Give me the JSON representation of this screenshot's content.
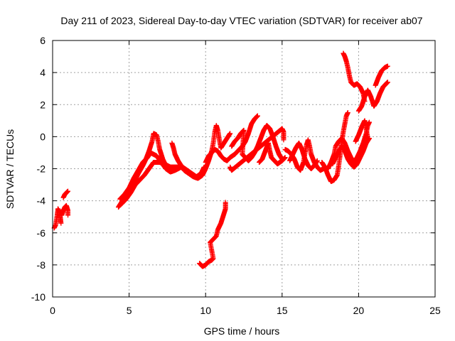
{
  "chart_data": {
    "type": "scatter",
    "title": "Day 211 of 2023, Sidereal Day-to-day VTEC variation (SDTVAR) for receiver ab07",
    "xlabel": "GPS time / hours",
    "ylabel": "SDTVAR / TECUs",
    "xlim": [
      0,
      25
    ],
    "ylim": [
      -10,
      6
    ],
    "xticks": [
      "0",
      "5",
      "10",
      "15",
      "20",
      "25"
    ],
    "yticks": [
      "-10",
      "-8",
      "-6",
      "-4",
      "-2",
      "0",
      "2",
      "4",
      "6"
    ],
    "grid": true,
    "marker": "plus",
    "color": "#ff0000",
    "series": [
      {
        "segments": [
          [
            [
              0.1,
              -5.7
            ],
            [
              0.2,
              -5.5
            ],
            [
              0.3,
              -4.9
            ],
            [
              0.35,
              -4.5
            ],
            [
              0.45,
              -4.7
            ],
            [
              0.5,
              -5.0
            ],
            [
              0.55,
              -5.4
            ]
          ],
          [
            [
              0.6,
              -4.9
            ],
            [
              0.7,
              -4.6
            ],
            [
              0.8,
              -4.4
            ],
            [
              0.9,
              -4.3
            ],
            [
              1.0,
              -4.6
            ],
            [
              1.0,
              -4.9
            ]
          ],
          [
            [
              0.7,
              -3.8
            ],
            [
              0.8,
              -3.6
            ],
            [
              0.9,
              -3.5
            ],
            [
              1.0,
              -3.4
            ]
          ],
          [
            [
              4.3,
              -4.4
            ],
            [
              4.5,
              -4.1
            ],
            [
              4.7,
              -3.8
            ],
            [
              5.0,
              -3.4
            ],
            [
              5.3,
              -2.9
            ],
            [
              5.6,
              -2.3
            ],
            [
              5.9,
              -1.8
            ],
            [
              6.1,
              -1.4
            ],
            [
              6.3,
              -0.9
            ],
            [
              6.5,
              -0.3
            ],
            [
              6.6,
              0.2
            ],
            [
              6.8,
              0.1
            ],
            [
              6.9,
              -0.3
            ],
            [
              7.0,
              -0.8
            ],
            [
              7.2,
              -1.4
            ],
            [
              7.4,
              -1.8
            ],
            [
              7.6,
              -2.1
            ]
          ],
          [
            [
              4.4,
              -3.9
            ],
            [
              4.7,
              -3.6
            ],
            [
              5.0,
              -3.2
            ],
            [
              5.3,
              -2.6
            ],
            [
              5.6,
              -2.1
            ],
            [
              5.9,
              -1.6
            ],
            [
              6.2,
              -1.3
            ],
            [
              6.4,
              -1.0
            ],
            [
              6.6,
              -1.1
            ],
            [
              6.8,
              -1.2
            ],
            [
              7.1,
              -1.6
            ],
            [
              7.4,
              -2.0
            ],
            [
              7.7,
              -2.2
            ],
            [
              8.0,
              -2.1
            ],
            [
              8.4,
              -1.9
            ],
            [
              8.6,
              -2.0
            ]
          ],
          [
            [
              4.5,
              -4.2
            ],
            [
              4.8,
              -3.9
            ],
            [
              5.1,
              -3.5
            ],
            [
              5.4,
              -3.0
            ],
            [
              5.7,
              -2.7
            ],
            [
              6.0,
              -2.4
            ],
            [
              6.3,
              -2.0
            ],
            [
              6.6,
              -1.6
            ],
            [
              7.0,
              -1.6
            ],
            [
              7.3,
              -1.7
            ],
            [
              7.7,
              -1.9
            ],
            [
              8.1,
              -1.9
            ],
            [
              8.5,
              -1.9
            ],
            [
              8.8,
              -2.1
            ],
            [
              9.1,
              -2.3
            ],
            [
              9.4,
              -2.5
            ],
            [
              9.7,
              -2.3
            ],
            [
              9.9,
              -1.9
            ]
          ],
          [
            [
              7.8,
              -0.4
            ],
            [
              7.9,
              -0.7
            ],
            [
              8.0,
              -1.1
            ],
            [
              8.2,
              -1.5
            ],
            [
              8.4,
              -1.8
            ],
            [
              8.6,
              -2.1
            ],
            [
              8.9,
              -2.3
            ],
            [
              9.2,
              -2.5
            ],
            [
              9.5,
              -2.6
            ],
            [
              9.8,
              -2.4
            ],
            [
              10.0,
              -2.0
            ],
            [
              10.2,
              -1.5
            ],
            [
              10.4,
              -0.9
            ],
            [
              10.5,
              -0.4
            ],
            [
              10.6,
              0.3
            ],
            [
              10.7,
              0.7
            ],
            [
              10.8,
              0.4
            ],
            [
              10.9,
              -0.2
            ],
            [
              11.0,
              -0.7
            ],
            [
              11.2,
              -0.4
            ],
            [
              11.4,
              -0.1
            ],
            [
              11.6,
              0.2
            ]
          ],
          [
            [
              10.0,
              -1.6
            ],
            [
              10.2,
              -1.2
            ],
            [
              10.4,
              -1.0
            ],
            [
              10.6,
              -0.8
            ],
            [
              10.8,
              -0.9
            ],
            [
              11.0,
              -1.2
            ],
            [
              11.2,
              -1.4
            ],
            [
              11.4,
              -1.5
            ],
            [
              11.6,
              -1.3
            ],
            [
              11.9,
              -1.1
            ],
            [
              12.1,
              -0.9
            ],
            [
              12.4,
              -0.6
            ],
            [
              12.6,
              -0.3
            ],
            [
              12.8,
              0.2
            ],
            [
              13.0,
              0.8
            ],
            [
              13.2,
              1.1
            ],
            [
              13.4,
              1.3
            ]
          ],
          [
            [
              9.6,
              -7.9
            ],
            [
              9.8,
              -8.1
            ],
            [
              10.0,
              -8.0
            ],
            [
              10.2,
              -7.8
            ],
            [
              10.4,
              -7.7
            ],
            [
              10.5,
              -7.6
            ],
            [
              10.3,
              -6.6
            ],
            [
              10.5,
              -6.4
            ],
            [
              10.7,
              -6.2
            ],
            [
              10.8,
              -5.8
            ],
            [
              10.9,
              -5.6
            ],
            [
              11.0,
              -5.4
            ],
            [
              11.1,
              -5.1
            ],
            [
              11.2,
              -4.8
            ],
            [
              11.3,
              -4.5
            ],
            [
              11.3,
              -4.1
            ]
          ],
          [
            [
              11.7,
              -0.6
            ],
            [
              11.9,
              -0.3
            ],
            [
              12.1,
              -0.1
            ],
            [
              12.3,
              0.2
            ],
            [
              12.5,
              0.4
            ],
            [
              12.4,
              -1.1
            ],
            [
              12.6,
              -1.3
            ],
            [
              12.8,
              -1.5
            ],
            [
              13.0,
              -1.3
            ],
            [
              13.2,
              -1.0
            ],
            [
              13.4,
              -0.6
            ],
            [
              13.6,
              -0.1
            ],
            [
              13.8,
              0.4
            ],
            [
              14.0,
              0.7
            ],
            [
              14.2,
              0.5
            ],
            [
              14.4,
              0.0
            ],
            [
              14.6,
              -0.6
            ],
            [
              14.8,
              -1.1
            ],
            [
              15.0,
              -1.4
            ]
          ],
          [
            [
              13.5,
              -1.6
            ],
            [
              13.7,
              -1.4
            ],
            [
              13.9,
              -0.9
            ],
            [
              14.1,
              -0.4
            ],
            [
              14.2,
              -0.9
            ],
            [
              14.3,
              -1.3
            ],
            [
              14.5,
              -1.5
            ],
            [
              14.7,
              -1.7
            ],
            [
              15.0,
              -1.5
            ],
            [
              15.2,
              -1.3
            ]
          ],
          [
            [
              11.6,
              -1.9
            ],
            [
              11.7,
              -2.1
            ],
            [
              15.0,
              0.5
            ],
            [
              15.1,
              0.3
            ],
            [
              15.1,
              -0.2
            ]
          ],
          [
            [
              15.2,
              -0.8
            ],
            [
              15.4,
              -0.9
            ],
            [
              15.6,
              -1.1
            ],
            [
              15.8,
              -1.4
            ],
            [
              16.0,
              -1.9
            ],
            [
              16.2,
              -2.1
            ],
            [
              16.4,
              -1.6
            ],
            [
              16.5,
              -1.0
            ],
            [
              16.6,
              -0.5
            ],
            [
              16.7,
              -0.2
            ],
            [
              16.8,
              -0.6
            ],
            [
              16.9,
              -1.1
            ],
            [
              17.1,
              -1.6
            ],
            [
              17.3,
              -1.9
            ],
            [
              17.5,
              -2.1
            ],
            [
              17.7,
              -2.0
            ]
          ],
          [
            [
              15.5,
              -1.5
            ],
            [
              15.7,
              -1.1
            ],
            [
              15.9,
              -0.7
            ],
            [
              16.1,
              -0.4
            ],
            [
              16.3,
              -0.8
            ],
            [
              16.5,
              -1.4
            ],
            [
              16.7,
              -1.8
            ],
            [
              16.9,
              -2.0
            ],
            [
              17.1,
              -1.8
            ],
            [
              17.3,
              -1.5
            ]
          ],
          [
            [
              17.6,
              -1.6
            ],
            [
              17.8,
              -1.9
            ],
            [
              18.0,
              -2.4
            ],
            [
              18.2,
              -2.8
            ],
            [
              18.4,
              -2.7
            ],
            [
              18.6,
              -2.4
            ],
            [
              18.7,
              -1.8
            ],
            [
              18.8,
              -1.1
            ],
            [
              18.9,
              -0.3
            ],
            [
              19.0,
              0.3
            ],
            [
              19.1,
              0.8
            ],
            [
              19.2,
              1.3
            ],
            [
              19.3,
              1.5
            ]
          ],
          [
            [
              18.0,
              -2.0
            ],
            [
              18.2,
              -1.6
            ],
            [
              18.4,
              -1.1
            ],
            [
              18.5,
              -0.6
            ],
            [
              18.7,
              -0.3
            ],
            [
              18.9,
              -0.1
            ],
            [
              19.1,
              -0.4
            ],
            [
              19.3,
              -0.9
            ],
            [
              19.5,
              -1.3
            ],
            [
              19.7,
              -1.6
            ],
            [
              19.9,
              -1.3
            ],
            [
              20.1,
              -0.9
            ],
            [
              20.3,
              -0.4
            ],
            [
              20.5,
              0.2
            ],
            [
              20.6,
              0.7
            ],
            [
              20.7,
              0.9
            ]
          ],
          [
            [
              18.3,
              -1.7
            ],
            [
              18.5,
              -1.3
            ],
            [
              18.7,
              -0.9
            ],
            [
              18.9,
              -0.6
            ],
            [
              19.1,
              -0.9
            ],
            [
              19.3,
              -1.4
            ],
            [
              19.5,
              -1.7
            ],
            [
              19.7,
              -1.9
            ],
            [
              19.9,
              -1.7
            ],
            [
              20.1,
              -1.3
            ],
            [
              20.3,
              -0.9
            ],
            [
              20.5,
              -0.4
            ],
            [
              20.7,
              -0.1
            ]
          ],
          [
            [
              19.0,
              5.2
            ],
            [
              19.1,
              5.0
            ],
            [
              19.2,
              4.7
            ],
            [
              19.3,
              4.3
            ],
            [
              19.4,
              3.8
            ],
            [
              19.5,
              3.4
            ],
            [
              19.7,
              3.2
            ],
            [
              19.9,
              3.3
            ],
            [
              20.1,
              3.1
            ],
            [
              20.3,
              2.7
            ],
            [
              20.4,
              2.2
            ]
          ],
          [
            [
              20.0,
              1.6
            ],
            [
              20.2,
              1.9
            ],
            [
              20.4,
              2.5
            ],
            [
              20.6,
              2.9
            ],
            [
              20.8,
              2.5
            ],
            [
              21.0,
              1.9
            ],
            [
              21.2,
              2.2
            ],
            [
              21.4,
              2.7
            ],
            [
              21.6,
              3.1
            ],
            [
              21.8,
              3.3
            ],
            [
              21.9,
              3.4
            ]
          ],
          [
            [
              21.1,
              3.2
            ],
            [
              21.3,
              3.7
            ],
            [
              21.5,
              4.1
            ],
            [
              21.7,
              4.3
            ],
            [
              21.9,
              4.4
            ]
          ],
          [
            [
              19.8,
              -0.3
            ],
            [
              20.0,
              0.1
            ],
            [
              20.2,
              0.6
            ],
            [
              20.4,
              1.0
            ],
            [
              20.5,
              0.5
            ],
            [
              20.6,
              -0.1
            ]
          ]
        ]
      }
    ]
  }
}
